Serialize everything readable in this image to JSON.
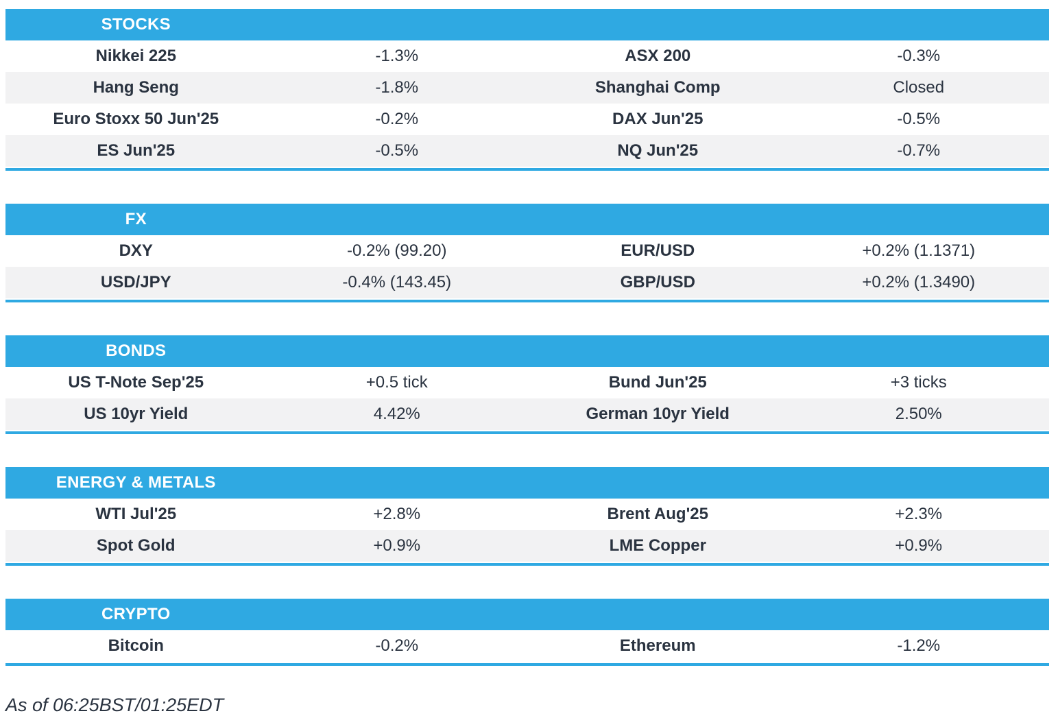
{
  "colors": {
    "accent_blue": "#2FA9E2",
    "row_alt_gray": "#F2F2F3",
    "text": "#2A3340"
  },
  "sections": [
    {
      "title": "STOCKS",
      "rows": [
        {
          "cells": [
            "Nikkei 225",
            "-1.3%",
            "ASX 200",
            "-0.3%"
          ]
        },
        {
          "cells": [
            "Hang Seng",
            "-1.8%",
            "Shanghai Comp",
            "Closed"
          ]
        },
        {
          "cells": [
            "Euro Stoxx 50 Jun'25",
            "-0.2%",
            "DAX Jun'25",
            "-0.5%"
          ]
        },
        {
          "cells": [
            "ES Jun'25",
            "-0.5%",
            "NQ Jun'25",
            "-0.7%"
          ]
        }
      ]
    },
    {
      "title": "FX",
      "rows": [
        {
          "cells": [
            "DXY",
            "-0.2% (99.20)",
            "EUR/USD",
            "+0.2% (1.1371)"
          ]
        },
        {
          "cells": [
            "USD/JPY",
            "-0.4% (143.45)",
            "GBP/USD",
            "+0.2% (1.3490)"
          ]
        }
      ]
    },
    {
      "title": "BONDS",
      "rows": [
        {
          "cells": [
            "US T-Note Sep'25",
            "+0.5 tick",
            "Bund Jun'25",
            "+3 ticks"
          ]
        },
        {
          "cells": [
            "US 10yr Yield",
            "4.42%",
            "German 10yr Yield",
            "2.50%"
          ]
        }
      ]
    },
    {
      "title": "ENERGY & METALS",
      "rows": [
        {
          "cells": [
            "WTI Jul'25",
            "+2.8%",
            "Brent Aug'25",
            "+2.3%"
          ]
        },
        {
          "cells": [
            "Spot Gold",
            "+0.9%",
            "LME Copper",
            "+0.9%"
          ]
        }
      ]
    },
    {
      "title": "CRYPTO",
      "rows": [
        {
          "cells": [
            "Bitcoin",
            "-0.2%",
            "Ethereum",
            "-1.2%"
          ]
        }
      ]
    }
  ],
  "footer": {
    "as_of": "As of 06:25BST/01:25EDT"
  }
}
